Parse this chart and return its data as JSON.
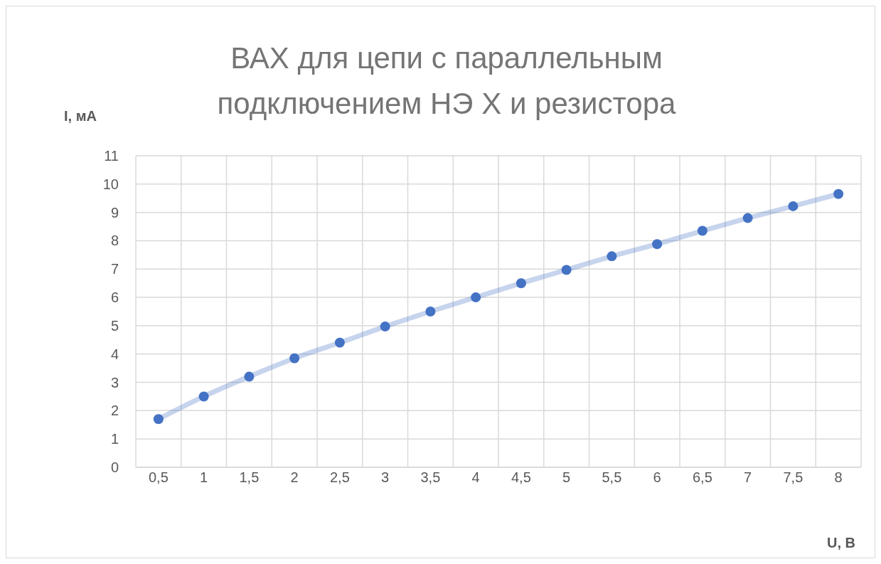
{
  "chart_data": {
    "type": "line",
    "title": "ВАХ для цепи с параллельным подключением НЭ X и резистора",
    "xlabel": "U, В",
    "ylabel": "I, мА",
    "categories": [
      "0,5",
      "1",
      "1,5",
      "2",
      "2,5",
      "3",
      "3,5",
      "4",
      "4,5",
      "5",
      "5,5",
      "6",
      "6,5",
      "7",
      "7,5",
      "8"
    ],
    "series": [
      {
        "color": "#4472c4",
        "values": [
          1.7,
          2.5,
          3.2,
          3.85,
          4.4,
          4.97,
          5.5,
          6.0,
          6.5,
          6.97,
          7.45,
          7.88,
          8.35,
          8.8,
          9.22,
          9.65
        ]
      }
    ],
    "ylim": [
      0,
      11
    ],
    "yticks": [
      0,
      1,
      2,
      3,
      4,
      5,
      6,
      7,
      8,
      9,
      10,
      11
    ],
    "grid": true,
    "marker": "circle",
    "line_style": "solid"
  }
}
